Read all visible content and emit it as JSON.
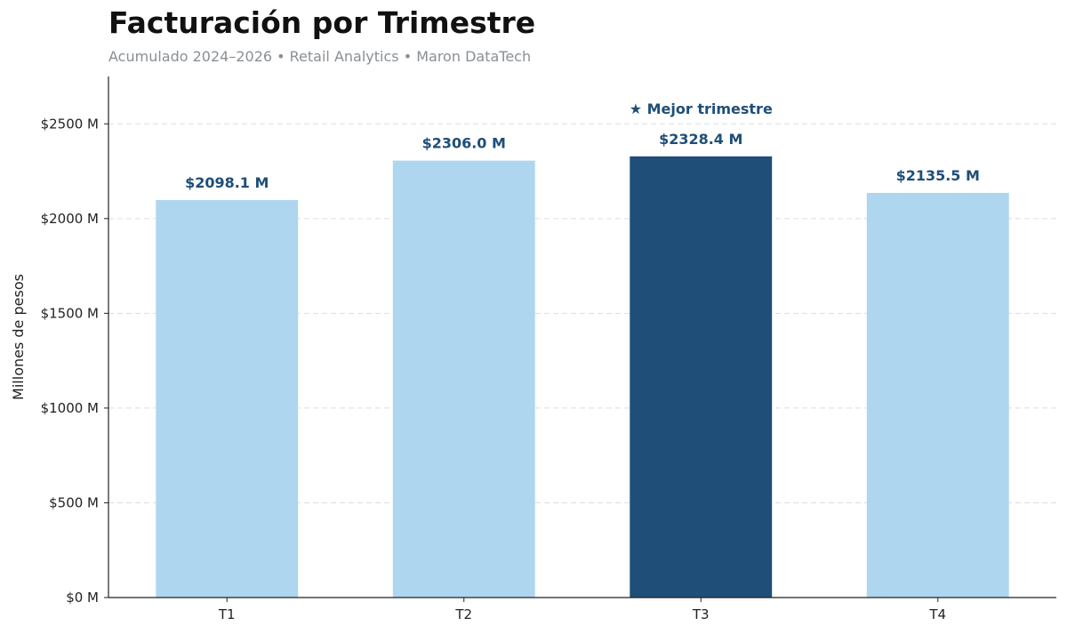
{
  "chart_data": {
    "type": "bar",
    "title": "Facturación por Trimestre",
    "subtitle": "Acumulado 2024–2026 • Retail Analytics • Maron DataTech",
    "xlabel": "",
    "ylabel": "Millones de pesos",
    "categories": [
      "T1",
      "T2",
      "T3",
      "T4"
    ],
    "values": [
      2098.1,
      2306.0,
      2328.4,
      2135.5
    ],
    "value_labels": [
      "$2098.1 M",
      "$2306.0 M",
      "$2328.4 M",
      "$2135.5 M"
    ],
    "ylim": [
      0,
      2750
    ],
    "yticks": [
      0,
      500,
      1000,
      1500,
      2000,
      2500
    ],
    "ytick_labels": [
      "$0 M",
      "$500 M",
      "$1000 M",
      "$1500 M",
      "$2000 M",
      "$2500 M"
    ],
    "grid": true,
    "highlight_index": 2,
    "annotation": "★ Mejor trimestre",
    "colors": {
      "bar": "#aed6ee",
      "highlight": "#1f4e79",
      "label": "#1f4e79",
      "grid": "#dddddd",
      "axis": "#222222"
    }
  }
}
